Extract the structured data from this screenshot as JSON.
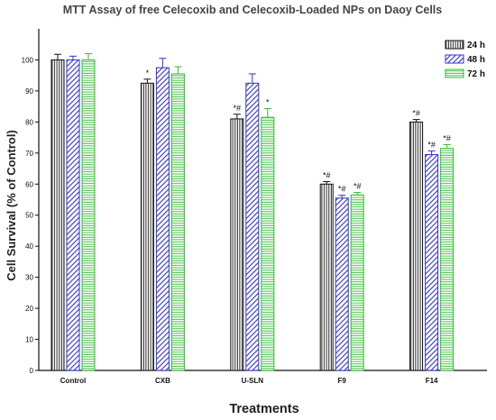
{
  "chart_data": {
    "type": "bar",
    "title": "MTT Assay of free Celecoxib and Celecoxib-Loaded NPs on Daoy Cells",
    "xlabel": "Treatments",
    "ylabel": "Cell Survival (% of Control)",
    "ylim": [
      0,
      110
    ],
    "yticks": [
      "0",
      "10",
      "20",
      "30",
      "40",
      "50",
      "60",
      "70",
      "80",
      "90",
      "100"
    ],
    "categories": [
      "Control",
      "CXB",
      "U-SLN",
      "F9",
      "F14"
    ],
    "legend_position": "top-right",
    "grid": false,
    "series": [
      {
        "name": "24 h",
        "color": "#111111",
        "pattern": "vertical-lines",
        "values": [
          100,
          92.5,
          81,
          60,
          80
        ],
        "errors": [
          1.8,
          1.3,
          1.5,
          0.8,
          0.8
        ],
        "annotations": [
          "",
          "*",
          "*#",
          "*#",
          "*#"
        ]
      },
      {
        "name": "48 h",
        "color": "#3333cc",
        "pattern": "diagonal-lines",
        "values": [
          100,
          97.5,
          92.5,
          55.5,
          69.5
        ],
        "errors": [
          1.2,
          3.0,
          3.0,
          0.9,
          1.2
        ],
        "annotations": [
          "",
          "",
          "",
          "*#",
          "*#"
        ]
      },
      {
        "name": "72 h",
        "color": "#33bb33",
        "pattern": "horizontal-lines",
        "values": [
          100,
          95.5,
          81.5,
          56.5,
          71.5
        ],
        "errors": [
          2.0,
          2.3,
          2.8,
          0.8,
          1.2
        ],
        "annotations": [
          "",
          "",
          "*",
          "*#",
          "*#"
        ]
      }
    ]
  }
}
